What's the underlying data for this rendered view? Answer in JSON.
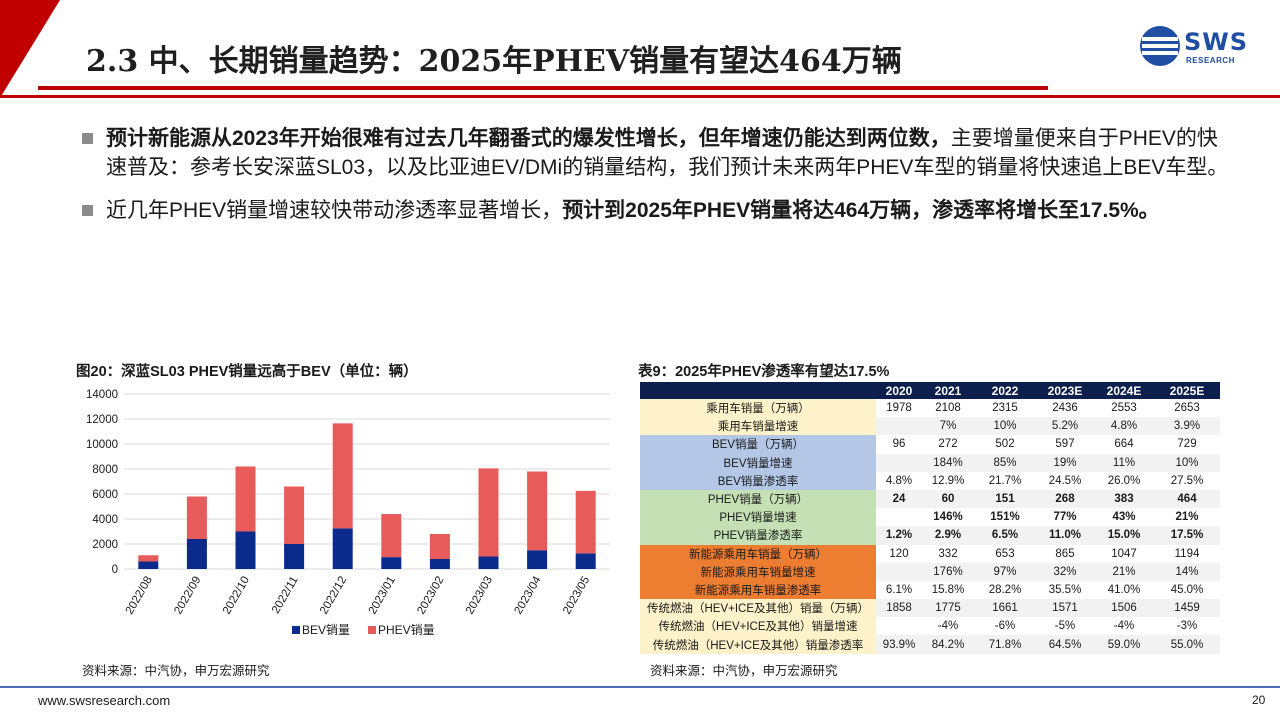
{
  "header": {
    "title": "2.3 中、长期销量趋势：2025年PHEV销量有望达464万辆",
    "logo_text": "SWS",
    "logo_sub": "RESEARCH"
  },
  "bullets": [
    {
      "bold": "预计新能源从2023年开始很难有过去几年翻番式的爆发性增长，但年增速仍能达到两位数，",
      "rest": "主要增量便来自于PHEV的快速普及：参考长安深蓝SL03，以及比亚迪EV/DMi的销量结构，我们预计未来两年PHEV车型的销量将快速追上BEV车型。"
    },
    {
      "lead": "近几年PHEV销量增速较快带动渗透率显著增长，",
      "bold": "预计到2025年PHEV销量将达464万辆，渗透率将增长至17.5%。"
    }
  ],
  "figure": {
    "title": "图20：深蓝SL03 PHEV销量远高于BEV（单位：辆）",
    "source": "资料来源：中汽协，申万宏源研究"
  },
  "chart_data": {
    "type": "bar",
    "stacked": true,
    "categories": [
      "2022/08",
      "2022/09",
      "2022/10",
      "2022/11",
      "2022/12",
      "2023/01",
      "2023/02",
      "2023/03",
      "2023/04",
      "2023/05"
    ],
    "series": [
      {
        "name": "BEV销量",
        "color": "#0a2a8c",
        "values": [
          600,
          2400,
          3000,
          2000,
          3250,
          950,
          800,
          1000,
          1500,
          1250
        ]
      },
      {
        "name": "PHEV销量",
        "color": "#e85b5b",
        "values": [
          500,
          3400,
          5200,
          4600,
          8400,
          3450,
          2000,
          7050,
          6300,
          5000
        ]
      }
    ],
    "ylim": [
      0,
      14000
    ],
    "yticks": [
      0,
      2000,
      4000,
      6000,
      8000,
      10000,
      12000,
      14000
    ],
    "grid": true,
    "legend_position": "bottom"
  },
  "table": {
    "title": "表9：2025年PHEV渗透率有望达17.5%",
    "source": "资料来源：中汽协，申万宏源研究",
    "headers": [
      "",
      "2020",
      "2021",
      "2022",
      "2023E",
      "2024E",
      "2025E"
    ],
    "rows": [
      {
        "label": "乘用车销量（万辆）",
        "group": "yellow",
        "values": [
          "1978",
          "2108",
          "2315",
          "2436",
          "2553",
          "2653"
        ]
      },
      {
        "label": "乘用车销量增速",
        "group": "yellow",
        "values": [
          "",
          "7%",
          "10%",
          "5.2%",
          "4.8%",
          "3.9%"
        ]
      },
      {
        "label": "BEV销量（万辆）",
        "group": "blue",
        "values": [
          "96",
          "272",
          "502",
          "597",
          "664",
          "729"
        ]
      },
      {
        "label": "BEV销量增速",
        "group": "blue",
        "values": [
          "",
          "184%",
          "85%",
          "19%",
          "11%",
          "10%"
        ]
      },
      {
        "label": "BEV销量渗透率",
        "group": "blue",
        "values": [
          "4.8%",
          "12.9%",
          "21.7%",
          "24.5%",
          "26.0%",
          "27.5%"
        ]
      },
      {
        "label": "PHEV销量（万辆）",
        "group": "green",
        "bold": true,
        "values": [
          "24",
          "60",
          "151",
          "268",
          "383",
          "464"
        ]
      },
      {
        "label": "PHEV销量增速",
        "group": "green",
        "bold": true,
        "values": [
          "",
          "146%",
          "151%",
          "77%",
          "43%",
          "21%"
        ]
      },
      {
        "label": "PHEV销量渗透率",
        "group": "green",
        "bold": true,
        "values": [
          "1.2%",
          "2.9%",
          "6.5%",
          "11.0%",
          "15.0%",
          "17.5%"
        ]
      },
      {
        "label": "新能源乘用车销量（万辆）",
        "group": "orange",
        "values": [
          "120",
          "332",
          "653",
          "865",
          "1047",
          "1194"
        ]
      },
      {
        "label": "新能源乘用车销量增速",
        "group": "orange",
        "values": [
          "",
          "176%",
          "97%",
          "32%",
          "21%",
          "14%"
        ]
      },
      {
        "label": "新能源乘用车销量渗透率",
        "group": "orange",
        "values": [
          "6.1%",
          "15.8%",
          "28.2%",
          "35.5%",
          "41.0%",
          "45.0%"
        ]
      },
      {
        "label": "传统燃油（HEV+ICE及其他）销量（万辆）",
        "group": "yellow2",
        "values": [
          "1858",
          "1775",
          "1661",
          "1571",
          "1506",
          "1459"
        ]
      },
      {
        "label": "传统燃油（HEV+ICE及其他）销量增速",
        "group": "yellow2",
        "values": [
          "",
          "-4%",
          "-6%",
          "-5%",
          "-4%",
          "-3%"
        ]
      },
      {
        "label": "传统燃油（HEV+ICE及其他）销量渗透率",
        "group": "yellow2",
        "values": [
          "93.9%",
          "84.2%",
          "71.8%",
          "64.5%",
          "59.0%",
          "55.0%"
        ]
      }
    ]
  },
  "footer": {
    "url": "www.swsresearch.com",
    "page_number": "20"
  },
  "colors": {
    "accent_red": "#c00000",
    "brand_blue": "#1f4ea3",
    "table_header": "#0d1f4c"
  }
}
